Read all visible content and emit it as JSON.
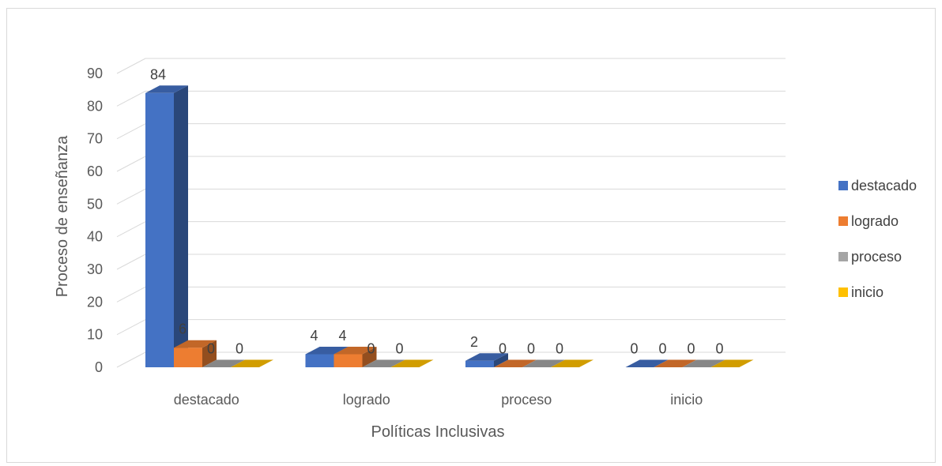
{
  "chart_data": {
    "type": "bar",
    "title": "",
    "xlabel": "Políticas Inclusivas",
    "ylabel": "Proceso de enseñanza",
    "categories": [
      "destacado",
      "logrado",
      "proceso",
      "inicio"
    ],
    "series": [
      {
        "name": "destacado",
        "values": [
          84,
          4,
          2,
          0
        ],
        "color": "#4472C4"
      },
      {
        "name": "logrado",
        "values": [
          6,
          4,
          0,
          0
        ],
        "color": "#ED7D31"
      },
      {
        "name": "proceso",
        "values": [
          0,
          0,
          0,
          0
        ],
        "color": "#A5A5A5"
      },
      {
        "name": "inicio",
        "values": [
          0,
          0,
          0,
          0
        ],
        "color": "#FFC000"
      }
    ],
    "ylim": [
      0,
      90
    ],
    "yticks": [
      0,
      10,
      20,
      30,
      40,
      50,
      60,
      70,
      80,
      90
    ],
    "grid": true,
    "legend_position": "right",
    "style": "3d-clustered-column"
  }
}
